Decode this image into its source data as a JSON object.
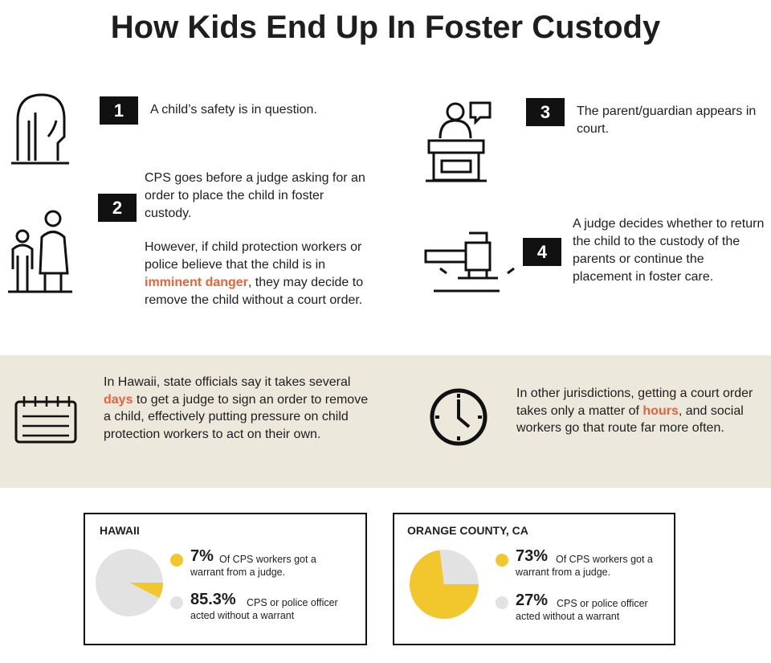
{
  "title": "How Kids End Up In Foster Custody",
  "steps": [
    {
      "number": 1,
      "text": "A child’s safety is in question."
    },
    {
      "number": 2,
      "text": "CPS goes before a judge asking for an order to place the child in foster custody.",
      "note_parts": [
        "However, if child protection workers or police believe that the child is in ",
        "imminent danger",
        ", they may decide to remove the child without a court order."
      ]
    },
    {
      "number": 3,
      "text": "The parent/guardian appears in court."
    },
    {
      "number": 4,
      "text": "A judge decides whether to return the child to the custody of the parents or continue the placement in foster care."
    }
  ],
  "callouts": [
    {
      "parts": [
        "In Hawaii, state officials say it takes several ",
        "days",
        " to get a judge to sign an order to remove a child, effectively putting pressure on child protection workers to act on their own."
      ]
    },
    {
      "parts": [
        "In other jurisdictions, getting a court order takes only a matter of ",
        "hours",
        ", and social workers go that route far more often."
      ]
    }
  ],
  "chart_data": [
    {
      "type": "pie",
      "title": "HAWAII",
      "categories": [
        "Of CPS workers got a warrant from a judge.",
        "CPS or police officer acted without a warrant"
      ],
      "values": [
        7,
        85.3
      ],
      "value_labels": [
        "7%",
        "85.3%"
      ],
      "colors": [
        "#f2c72e",
        "#e2e2e2"
      ]
    },
    {
      "type": "pie",
      "title": "ORANGE COUNTY, CA",
      "categories": [
        "Of CPS workers got a warrant from a judge.",
        "CPS or police officer acted without a warrant"
      ],
      "values": [
        73,
        27
      ],
      "value_labels": [
        "73%",
        "27%"
      ],
      "colors": [
        "#f2c72e",
        "#e2e2e2"
      ]
    }
  ]
}
